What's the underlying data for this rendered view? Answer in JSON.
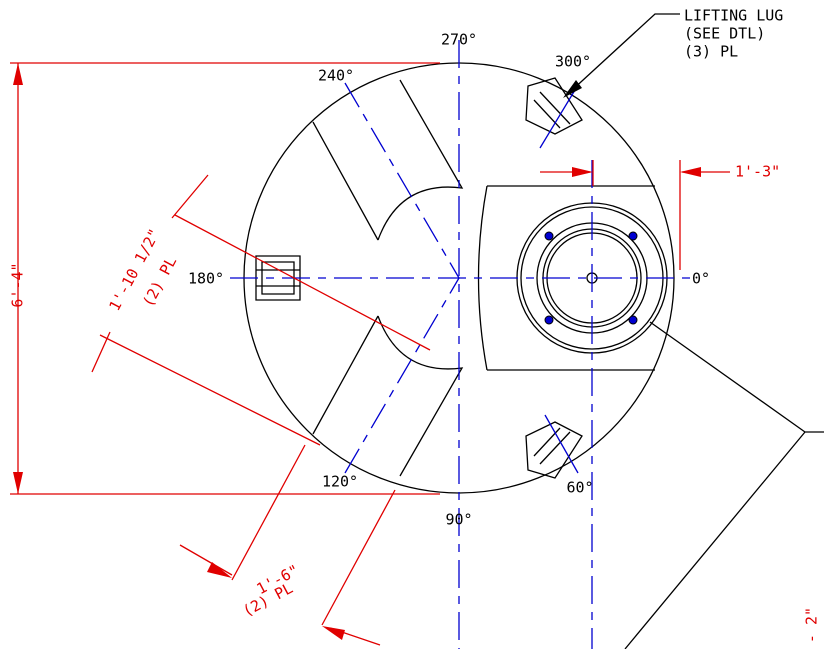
{
  "angles": {
    "a270": "270°",
    "a240": "240°",
    "a300": "300°",
    "a180": "180°",
    "a0": "0°",
    "a120": "120°",
    "a90": "90°",
    "a60": "60°"
  },
  "note": {
    "line1": "LIFTING LUG",
    "line2": "(SEE DTL)",
    "line3": "(3) PL"
  },
  "dimensions": {
    "overall": "6'-4\"",
    "offset": "1'-3\"",
    "slot_width": "1'-10 1/2\"",
    "slot_width_qty": "(2) PL",
    "slot_depth": "1'-6\"",
    "slot_depth_qty": "(2) PL",
    "edge": "- 2\""
  }
}
